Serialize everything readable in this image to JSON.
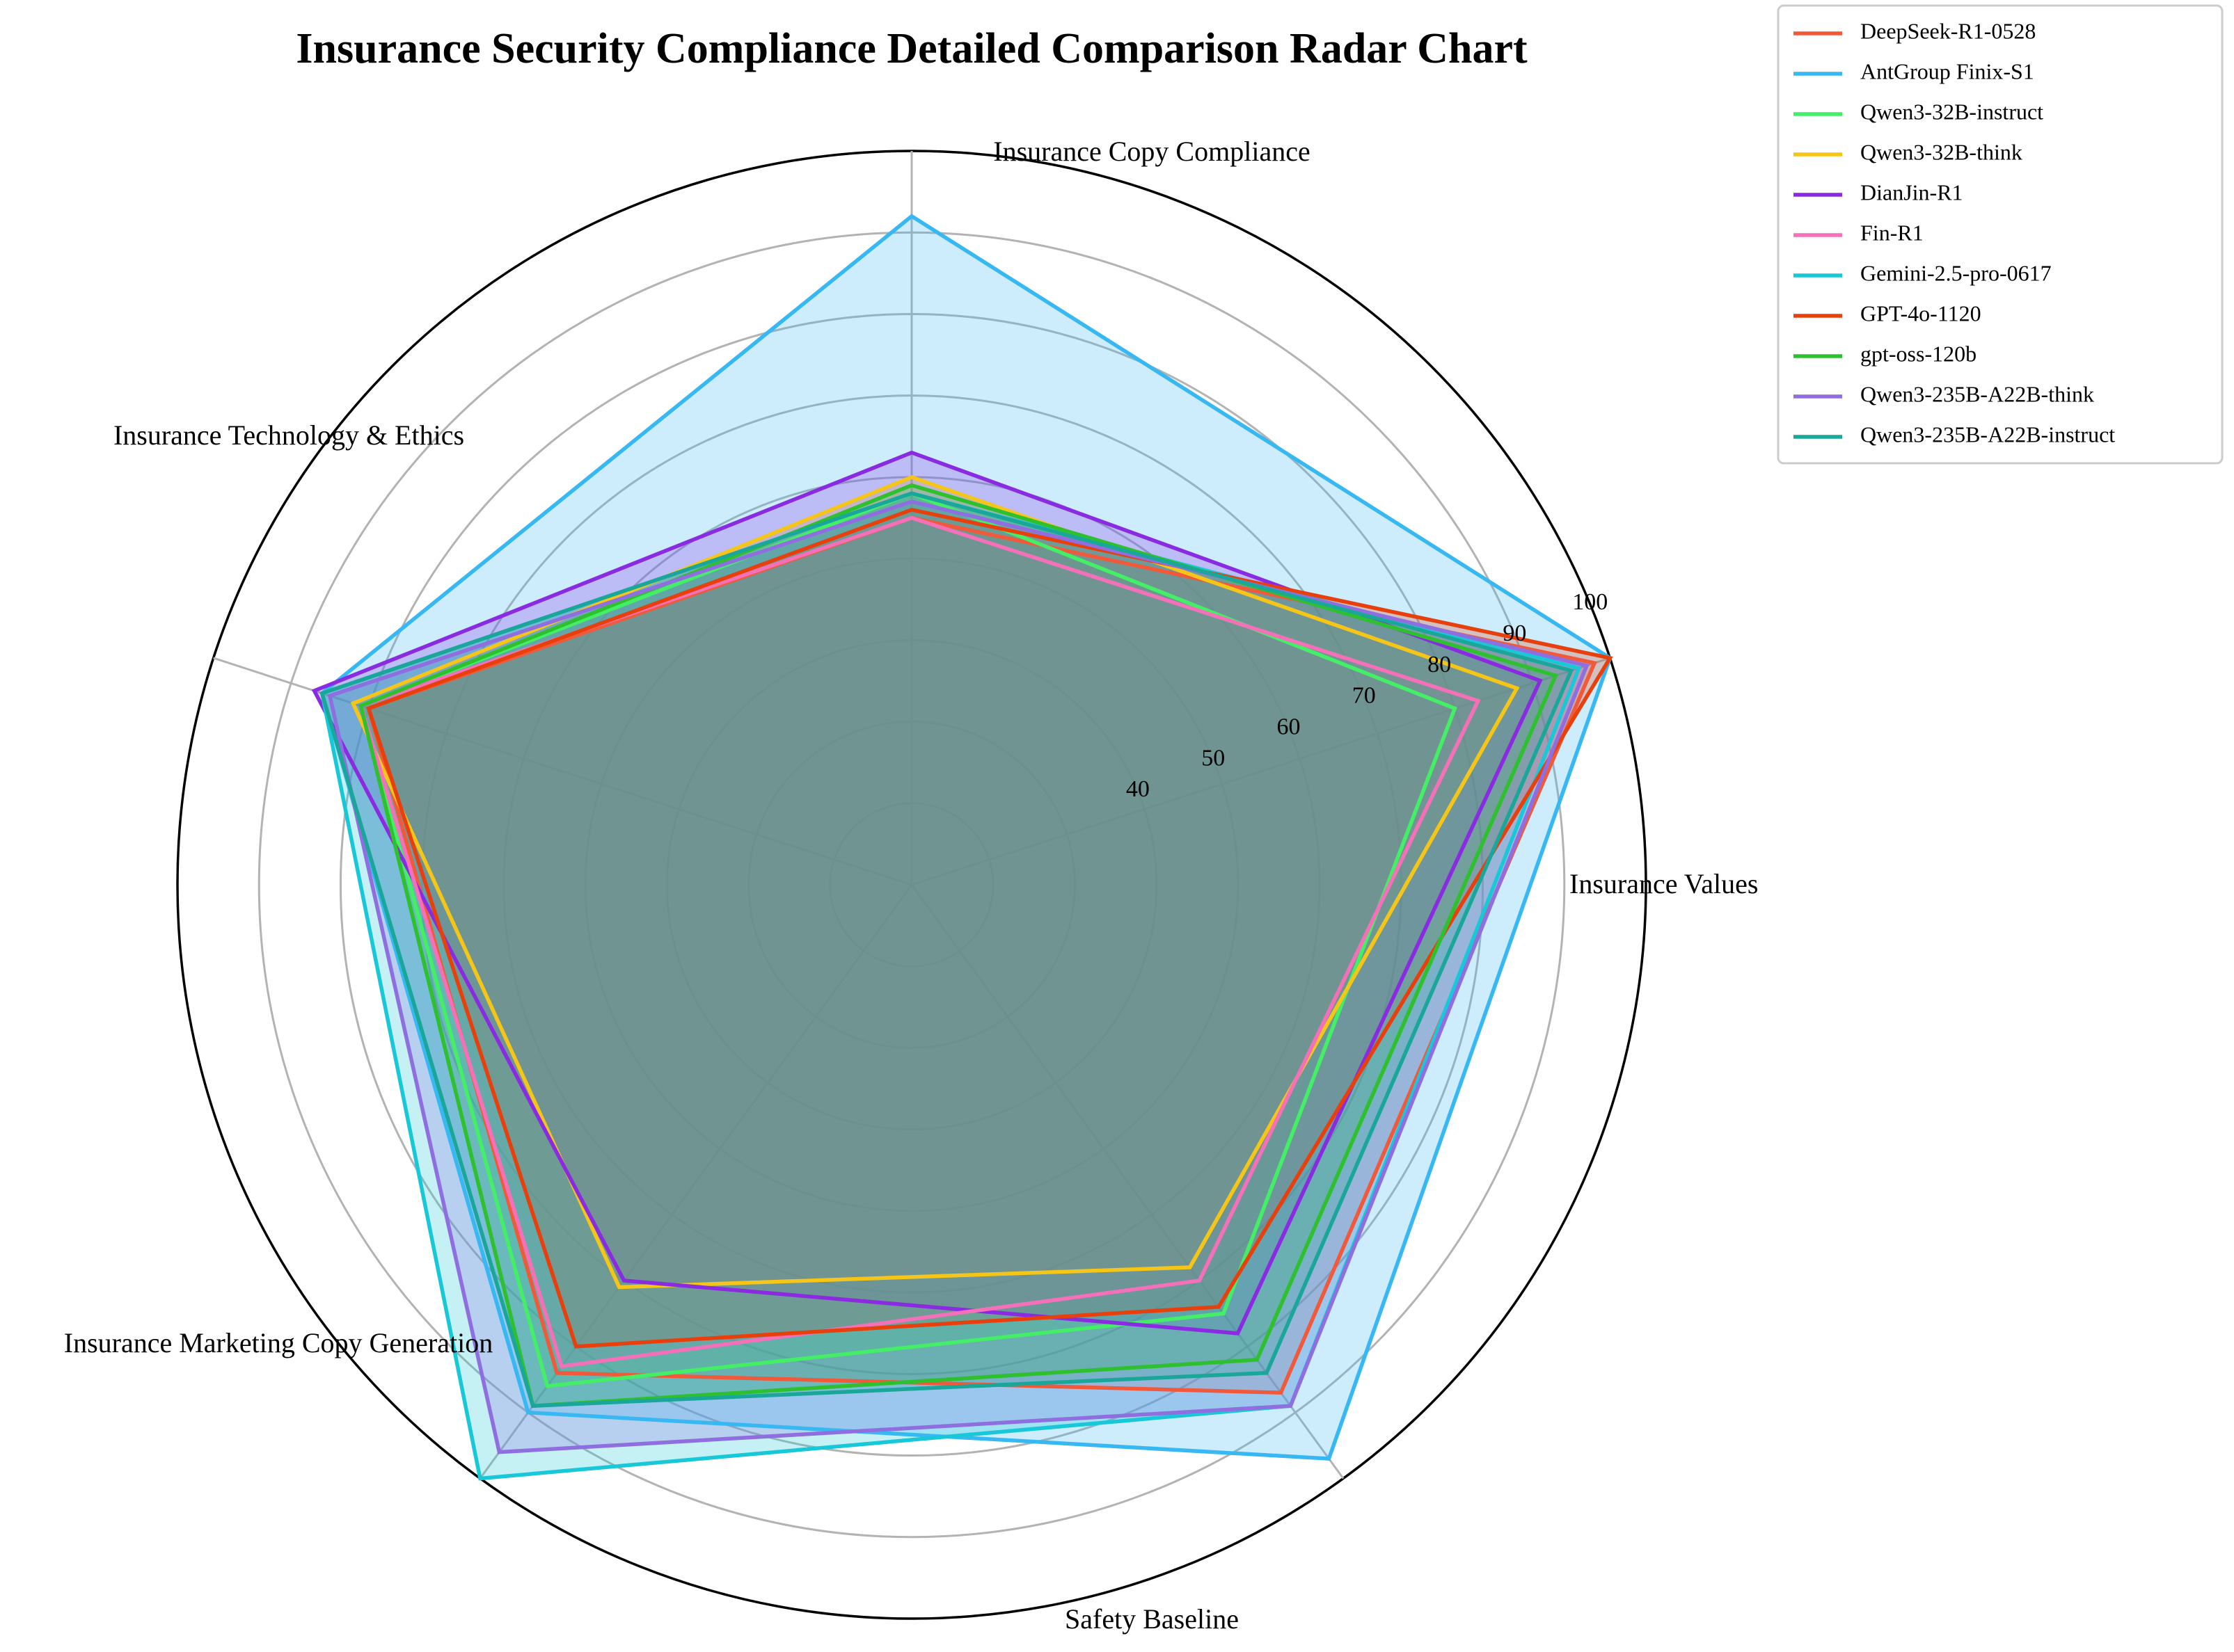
{
  "chart_data": {
    "type": "radar",
    "title": "Insurance Security Compliance Detailed Comparison Radar Chart",
    "axes": [
      "Insurance Values",
      "Insurance Copy Compliance",
      "Insurance Technology & Ethics",
      "Insurance Marketing Copy Generation",
      "Safety Baseline"
    ],
    "rlim": [
      10,
      100
    ],
    "ticks": [
      40,
      50,
      60,
      70,
      80,
      90,
      100
    ],
    "tick_labels": [
      "40",
      "50",
      "60",
      "70",
      "80",
      "90",
      "100"
    ],
    "grid": true,
    "legend_position": "outside-top-right",
    "series": [
      {
        "name": "DeepSeek-R1-0528",
        "color": "#f05a3a",
        "values": [
          98,
          55,
          80,
          84,
          87
        ]
      },
      {
        "name": "AntGroup Finix-S1",
        "color": "#38b8f2",
        "values": [
          100,
          92,
          86,
          90,
          97
        ]
      },
      {
        "name": "Qwen3-32B-instruct",
        "color": "#44ee66",
        "values": [
          80,
          58,
          81,
          86,
          75
        ]
      },
      {
        "name": "Qwen3-32B-think",
        "color": "#f5c518",
        "values": [
          88,
          60,
          82,
          71,
          68
        ]
      },
      {
        "name": "DianJin-R1",
        "color": "#8a2be2",
        "values": [
          91,
          63,
          87,
          70,
          78
        ]
      },
      {
        "name": "Fin-R1",
        "color": "#f470b8",
        "values": [
          83,
          55,
          81,
          83,
          70
        ]
      },
      {
        "name": "Gemini-2.5-pro-0617",
        "color": "#19c8d8",
        "values": [
          96,
          58,
          86,
          100,
          89
        ]
      },
      {
        "name": "GPT-4o-1120",
        "color": "#e8400c",
        "values": [
          100,
          56,
          80,
          80,
          74
        ]
      },
      {
        "name": "gpt-oss-120b",
        "color": "#2ec02e",
        "values": [
          93,
          59,
          81,
          89,
          82
        ]
      },
      {
        "name": "Qwen3-235B-A22B-think",
        "color": "#8f6ee0",
        "values": [
          97,
          57,
          85,
          96,
          89
        ]
      },
      {
        "name": "Qwen3-235B-A22B-instruct",
        "color": "#1aa79a",
        "values": [
          95,
          58,
          86,
          89,
          84
        ]
      }
    ]
  }
}
